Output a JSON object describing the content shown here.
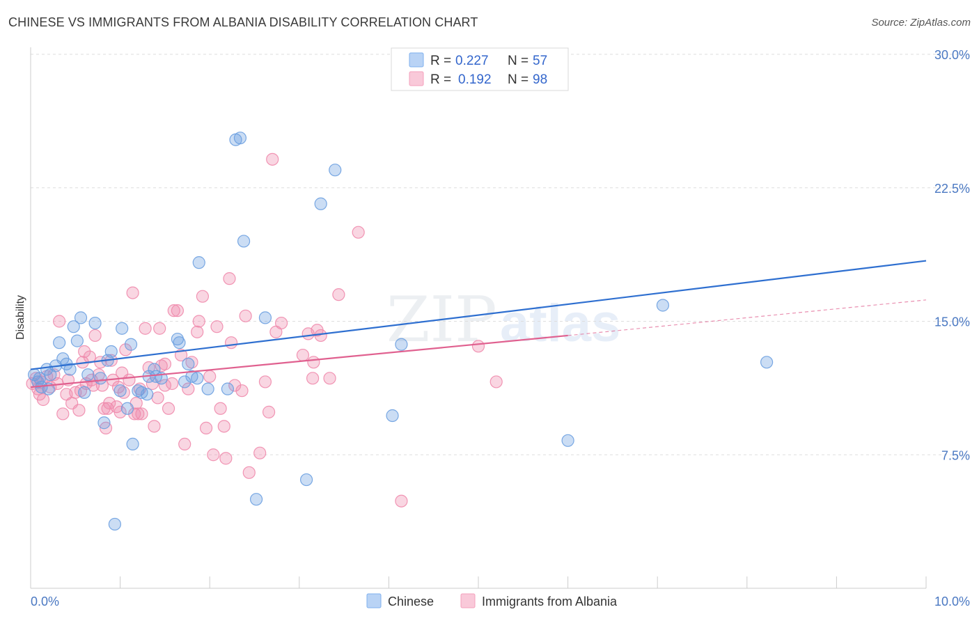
{
  "header": {
    "title": "CHINESE VS IMMIGRANTS FROM ALBANIA DISABILITY CORRELATION CHART",
    "source": "Source: ZipAtlas.com"
  },
  "watermark": {
    "zip": "ZIP",
    "atlas": "atlas"
  },
  "legend": {
    "r_label": "R =",
    "n_label": "N =",
    "rows": [
      {
        "name": "Chinese",
        "r": "0.227",
        "n": "57",
        "color": "#7fb0ee"
      },
      {
        "name": "Immigrants from Albania",
        "r": "0.192",
        "n": "98",
        "color": "#f4a0bc"
      }
    ]
  },
  "colors": {
    "chinese": "#6a9fe0",
    "albania": "#ef8aac",
    "chinese_line": "#2e6fd0",
    "albania_line": "#e0608f",
    "tick": "#4a78c2"
  },
  "chart_data": {
    "type": "scatter",
    "title": "CHINESE VS IMMIGRANTS FROM ALBANIA DISABILITY CORRELATION CHART",
    "xlabel": "",
    "ylabel": "Disability",
    "xlim": [
      0,
      10
    ],
    "ylim": [
      0,
      30
    ],
    "x_tick_labels": [
      "0.0%",
      "10.0%"
    ],
    "y_ticks": [
      {
        "value": 7.5,
        "label": "7.5%"
      },
      {
        "value": 15.0,
        "label": "15.0%"
      },
      {
        "value": 22.5,
        "label": "22.5%"
      },
      {
        "value": 30.0,
        "label": "30.0%"
      }
    ],
    "series": [
      {
        "name": "Chinese",
        "trend": {
          "x": [
            0,
            10
          ],
          "y": [
            12.3,
            18.4
          ]
        },
        "points": [
          [
            0.04,
            12.0
          ],
          [
            0.08,
            11.6
          ],
          [
            0.12,
            11.3
          ],
          [
            0.18,
            12.3
          ],
          [
            0.22,
            12.0
          ],
          [
            0.28,
            12.5
          ],
          [
            0.32,
            13.8
          ],
          [
            0.36,
            12.9
          ],
          [
            0.4,
            12.6
          ],
          [
            0.44,
            12.3
          ],
          [
            0.48,
            14.7
          ],
          [
            0.52,
            13.9
          ],
          [
            0.56,
            15.2
          ],
          [
            0.6,
            11.0
          ],
          [
            0.64,
            12.0
          ],
          [
            0.72,
            14.9
          ],
          [
            0.78,
            11.8
          ],
          [
            0.82,
            9.3
          ],
          [
            0.86,
            12.8
          ],
          [
            0.9,
            13.3
          ],
          [
            0.94,
            3.6
          ],
          [
            1.0,
            11.1
          ],
          [
            1.02,
            14.6
          ],
          [
            1.08,
            10.1
          ],
          [
            1.12,
            13.7
          ],
          [
            1.14,
            8.1
          ],
          [
            1.2,
            11.1
          ],
          [
            1.24,
            11.0
          ],
          [
            1.3,
            10.9
          ],
          [
            1.32,
            11.9
          ],
          [
            1.38,
            12.3
          ],
          [
            1.4,
            11.9
          ],
          [
            1.46,
            11.8
          ],
          [
            1.64,
            14.0
          ],
          [
            1.66,
            13.8
          ],
          [
            1.72,
            11.6
          ],
          [
            1.76,
            12.6
          ],
          [
            1.8,
            11.9
          ],
          [
            1.86,
            11.8
          ],
          [
            1.88,
            18.3
          ],
          [
            1.98,
            11.2
          ],
          [
            2.2,
            11.2
          ],
          [
            2.29,
            25.2
          ],
          [
            2.34,
            25.3
          ],
          [
            2.38,
            19.5
          ],
          [
            2.52,
            5.0
          ],
          [
            2.62,
            15.2
          ],
          [
            3.08,
            6.1
          ],
          [
            3.24,
            21.6
          ],
          [
            3.4,
            23.5
          ],
          [
            4.04,
            9.7
          ],
          [
            4.14,
            13.7
          ],
          [
            6.0,
            8.3
          ],
          [
            7.06,
            15.9
          ],
          [
            8.22,
            12.7
          ],
          [
            0.1,
            11.8
          ],
          [
            0.2,
            11.2
          ]
        ]
      },
      {
        "name": "Immigrants from Albania",
        "trend": {
          "x": [
            0,
            6.0
          ],
          "y": [
            11.3,
            14.2
          ]
        },
        "trend_extension": {
          "x": [
            6.0,
            10.0
          ],
          "y": [
            14.2,
            16.2
          ]
        },
        "points": [
          [
            0.02,
            11.5
          ],
          [
            0.06,
            11.8
          ],
          [
            0.08,
            11.2
          ],
          [
            0.1,
            10.9
          ],
          [
            0.12,
            11.6
          ],
          [
            0.14,
            10.6
          ],
          [
            0.18,
            11.9
          ],
          [
            0.22,
            11.3
          ],
          [
            0.26,
            12.0
          ],
          [
            0.3,
            11.5
          ],
          [
            0.32,
            15.0
          ],
          [
            0.36,
            9.8
          ],
          [
            0.4,
            10.9
          ],
          [
            0.42,
            11.7
          ],
          [
            0.46,
            10.4
          ],
          [
            0.5,
            11.0
          ],
          [
            0.54,
            10.0
          ],
          [
            0.56,
            11.1
          ],
          [
            0.58,
            12.7
          ],
          [
            0.6,
            13.3
          ],
          [
            0.62,
            11.5
          ],
          [
            0.66,
            13.0
          ],
          [
            0.68,
            11.7
          ],
          [
            0.7,
            11.4
          ],
          [
            0.72,
            14.2
          ],
          [
            0.76,
            12.0
          ],
          [
            0.78,
            12.7
          ],
          [
            0.8,
            11.4
          ],
          [
            0.82,
            10.1
          ],
          [
            0.84,
            9.0
          ],
          [
            0.86,
            10.1
          ],
          [
            0.88,
            10.4
          ],
          [
            0.9,
            12.8
          ],
          [
            0.92,
            11.7
          ],
          [
            0.96,
            10.2
          ],
          [
            0.98,
            11.3
          ],
          [
            1.0,
            9.9
          ],
          [
            1.02,
            12.1
          ],
          [
            1.04,
            11.0
          ],
          [
            1.06,
            13.4
          ],
          [
            1.1,
            11.7
          ],
          [
            1.14,
            16.6
          ],
          [
            1.16,
            9.8
          ],
          [
            1.18,
            10.4
          ],
          [
            1.2,
            9.8
          ],
          [
            1.22,
            11.2
          ],
          [
            1.24,
            9.8
          ],
          [
            1.28,
            14.6
          ],
          [
            1.32,
            12.4
          ],
          [
            1.36,
            11.5
          ],
          [
            1.38,
            9.1
          ],
          [
            1.42,
            10.7
          ],
          [
            1.44,
            14.6
          ],
          [
            1.46,
            12.5
          ],
          [
            1.5,
            11.4
          ],
          [
            1.54,
            10.1
          ],
          [
            1.58,
            11.5
          ],
          [
            1.6,
            15.6
          ],
          [
            1.64,
            15.6
          ],
          [
            1.68,
            13.1
          ],
          [
            1.72,
            8.1
          ],
          [
            1.76,
            11.2
          ],
          [
            1.8,
            12.7
          ],
          [
            1.86,
            14.4
          ],
          [
            1.88,
            15.0
          ],
          [
            1.92,
            16.4
          ],
          [
            1.96,
            9.0
          ],
          [
            2.0,
            11.9
          ],
          [
            2.04,
            7.5
          ],
          [
            2.08,
            14.7
          ],
          [
            2.12,
            10.1
          ],
          [
            2.16,
            9.1
          ],
          [
            2.18,
            7.3
          ],
          [
            2.22,
            17.4
          ],
          [
            2.24,
            13.8
          ],
          [
            2.28,
            11.4
          ],
          [
            2.36,
            11.1
          ],
          [
            2.4,
            15.3
          ],
          [
            2.44,
            6.5
          ],
          [
            2.56,
            7.6
          ],
          [
            2.62,
            11.6
          ],
          [
            2.66,
            9.9
          ],
          [
            2.7,
            24.1
          ],
          [
            2.74,
            14.4
          ],
          [
            2.8,
            14.9
          ],
          [
            3.04,
            13.1
          ],
          [
            3.1,
            14.3
          ],
          [
            3.16,
            12.7
          ],
          [
            3.2,
            14.5
          ],
          [
            3.24,
            14.2
          ],
          [
            3.34,
            11.8
          ],
          [
            3.44,
            16.5
          ],
          [
            3.66,
            20.0
          ],
          [
            4.14,
            4.9
          ],
          [
            5.0,
            13.6
          ],
          [
            5.2,
            11.6
          ],
          [
            3.15,
            11.8
          ],
          [
            1.5,
            12.6
          ]
        ]
      }
    ]
  }
}
